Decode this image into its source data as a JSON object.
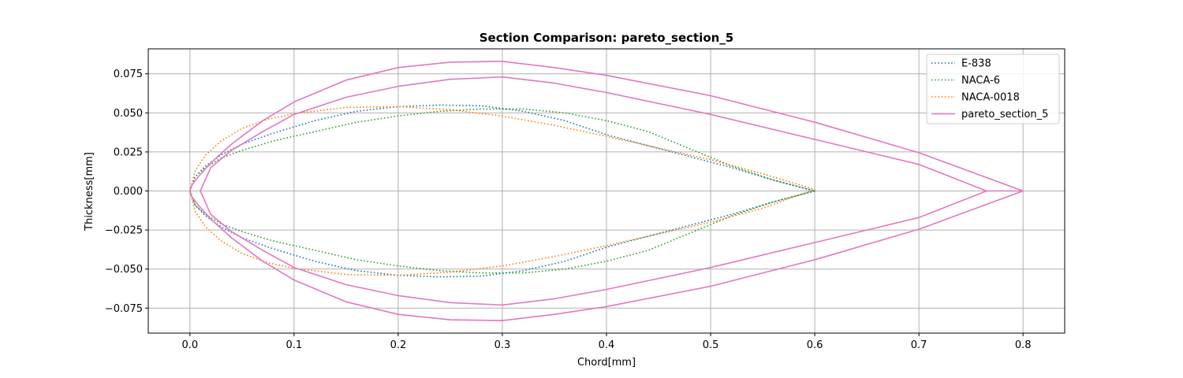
{
  "chart_data": {
    "type": "line",
    "title": "Section Comparison: pareto_section_5",
    "xlabel": "Chord[mm]",
    "ylabel": "Thickness[mm]",
    "xlim": [
      -0.04,
      0.84
    ],
    "ylim": [
      -0.091,
      0.091
    ],
    "xticks": [
      0.0,
      0.1,
      0.2,
      0.3,
      0.4,
      0.5,
      0.6,
      0.7,
      0.8
    ],
    "xtick_labels": [
      "0.0",
      "0.1",
      "0.2",
      "0.3",
      "0.4",
      "0.5",
      "0.6",
      "0.7",
      "0.8"
    ],
    "yticks": [
      -0.075,
      -0.05,
      -0.025,
      0.0,
      0.025,
      0.05,
      0.075
    ],
    "ytick_labels": [
      "−0.075",
      "−0.050",
      "−0.025",
      "0.000",
      "0.025",
      "0.050",
      "0.075"
    ],
    "grid": true,
    "legend_position": "top-right",
    "series": [
      {
        "name": "E-838",
        "color": "#1f77b4",
        "style": "dotted",
        "x": [
          0,
          0.005,
          0.015,
          0.03,
          0.05,
          0.08,
          0.12,
          0.16,
          0.2,
          0.24,
          0.28,
          0.32,
          0.36,
          0.4,
          0.44,
          0.48,
          0.52,
          0.56,
          0.6,
          0.56,
          0.52,
          0.48,
          0.44,
          0.4,
          0.36,
          0.32,
          0.28,
          0.24,
          0.2,
          0.16,
          0.12,
          0.08,
          0.05,
          0.03,
          0.015,
          0.005,
          0
        ],
        "y": [
          0,
          0.009,
          0.016,
          0.023,
          0.03,
          0.037,
          0.045,
          0.051,
          0.054,
          0.055,
          0.0545,
          0.051,
          0.045,
          0.036,
          0.029,
          0.022,
          0.015,
          0.007,
          0,
          -0.007,
          -0.015,
          -0.022,
          -0.029,
          -0.036,
          -0.045,
          -0.051,
          -0.0545,
          -0.055,
          -0.054,
          -0.051,
          -0.045,
          -0.037,
          -0.03,
          -0.023,
          -0.016,
          -0.009,
          0
        ]
      },
      {
        "name": "NACA-6",
        "color": "#2ca02c",
        "style": "dotted",
        "x": [
          0,
          0.005,
          0.015,
          0.03,
          0.05,
          0.08,
          0.12,
          0.16,
          0.2,
          0.24,
          0.28,
          0.32,
          0.36,
          0.4,
          0.44,
          0.48,
          0.52,
          0.56,
          0.6,
          0.56,
          0.52,
          0.48,
          0.44,
          0.4,
          0.36,
          0.32,
          0.28,
          0.24,
          0.2,
          0.16,
          0.12,
          0.08,
          0.05,
          0.03,
          0.015,
          0.005,
          0
        ],
        "y": [
          0,
          0.009,
          0.015,
          0.021,
          0.026,
          0.032,
          0.038,
          0.044,
          0.048,
          0.051,
          0.0525,
          0.0525,
          0.05,
          0.045,
          0.038,
          0.027,
          0.016,
          0.007,
          0,
          -0.007,
          -0.016,
          -0.027,
          -0.038,
          -0.045,
          -0.05,
          -0.0525,
          -0.0525,
          -0.051,
          -0.048,
          -0.044,
          -0.038,
          -0.032,
          -0.026,
          -0.021,
          -0.015,
          -0.009,
          0
        ]
      },
      {
        "name": "NACA-0018",
        "color": "#ff7f0e",
        "style": "dotted",
        "x": [
          0,
          0.005,
          0.015,
          0.03,
          0.05,
          0.075,
          0.1,
          0.15,
          0.2,
          0.25,
          0.3,
          0.35,
          0.4,
          0.45,
          0.5,
          0.55,
          0.6,
          0.55,
          0.5,
          0.45,
          0.4,
          0.35,
          0.3,
          0.25,
          0.2,
          0.15,
          0.1,
          0.075,
          0.05,
          0.03,
          0.015,
          0.005,
          0
        ],
        "y": [
          0,
          0.013,
          0.023,
          0.032,
          0.04,
          0.046,
          0.0495,
          0.0535,
          0.054,
          0.052,
          0.048,
          0.042,
          0.035,
          0.0275,
          0.02,
          0.011,
          0.001,
          -0.011,
          -0.02,
          -0.0275,
          -0.035,
          -0.042,
          -0.048,
          -0.052,
          -0.054,
          -0.0535,
          -0.0495,
          -0.046,
          -0.04,
          -0.032,
          -0.023,
          -0.013,
          0
        ]
      },
      {
        "name": "pareto_section_5",
        "color": "#e377c2",
        "style": "solid",
        "x": [
          0.8,
          0.7,
          0.6,
          0.5,
          0.4,
          0.35,
          0.3,
          0.25,
          0.2,
          0.15,
          0.1,
          0.07,
          0.04,
          0.02,
          0.008,
          0.002,
          0,
          0.002,
          0.008,
          0.02,
          0.04,
          0.07,
          0.1,
          0.15,
          0.2,
          0.25,
          0.3,
          0.35,
          0.4,
          0.5,
          0.6,
          0.7,
          0.8,
          0.765,
          0.7,
          0.6,
          0.5,
          0.4,
          0.35,
          0.3,
          0.25,
          0.2,
          0.15,
          0.1,
          0.07,
          0.04,
          0.02,
          0.01,
          0.02,
          0.04,
          0.07,
          0.1,
          0.15,
          0.2,
          0.25,
          0.3,
          0.35,
          0.4,
          0.5,
          0.6,
          0.7,
          0.765,
          0.8
        ],
        "y": [
          0,
          0.0245,
          0.044,
          0.061,
          0.074,
          0.079,
          0.083,
          0.0825,
          0.079,
          0.071,
          0.057,
          0.045,
          0.03,
          0.018,
          0.009,
          0.004,
          0,
          -0.004,
          -0.009,
          -0.018,
          -0.03,
          -0.045,
          -0.057,
          -0.071,
          -0.079,
          -0.0825,
          -0.083,
          -0.079,
          -0.074,
          -0.061,
          -0.044,
          -0.0245,
          0,
          0,
          -0.017,
          -0.033,
          -0.049,
          -0.063,
          -0.069,
          -0.073,
          -0.0715,
          -0.067,
          -0.06,
          -0.049,
          -0.038,
          -0.026,
          -0.015,
          0,
          0.015,
          0.026,
          0.038,
          0.049,
          0.06,
          0.067,
          0.0715,
          0.073,
          0.069,
          0.063,
          0.049,
          0.033,
          0.017,
          0,
          0
        ]
      }
    ]
  }
}
